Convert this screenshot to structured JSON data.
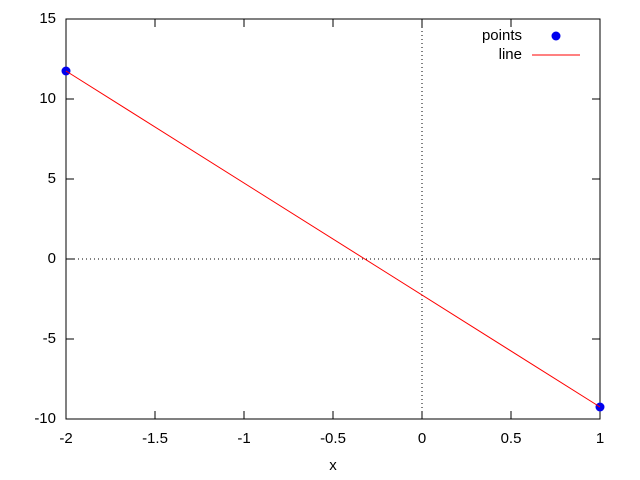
{
  "chart_data": {
    "type": "scatter",
    "xlabel": "x",
    "series": [
      {
        "name": "points",
        "mode": "points",
        "color": "#0000ee",
        "x": [
          -2,
          1
        ],
        "values": [
          11.75,
          -9.25
        ]
      },
      {
        "name": "line",
        "mode": "line",
        "color": "#ff0000",
        "x": [
          -2,
          1
        ],
        "values": [
          11.75,
          -9.25
        ]
      }
    ],
    "xlim": [
      -2,
      1
    ],
    "ylim": [
      -10,
      15
    ],
    "xticks": [
      -2,
      -1.5,
      -1,
      -0.5,
      0,
      0.5,
      1
    ],
    "yticks": [
      -10,
      -5,
      0,
      5,
      10,
      15
    ],
    "zero_axes": true,
    "legend": "upper right"
  }
}
